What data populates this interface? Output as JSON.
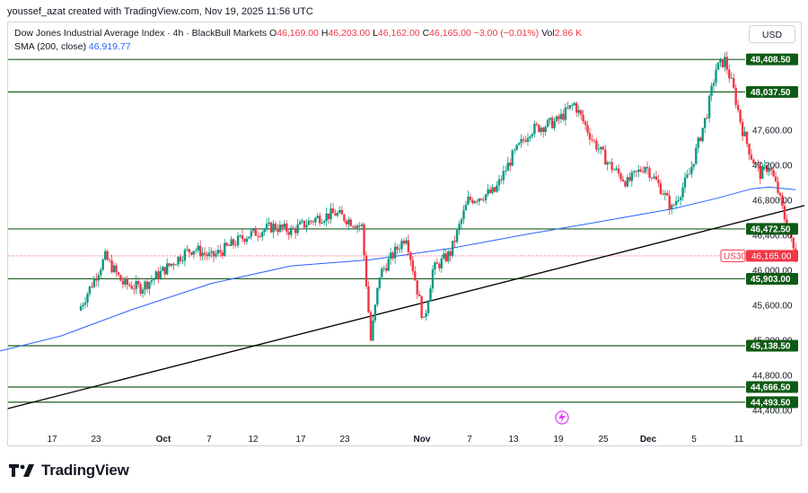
{
  "header": {
    "attribution": "youssef_azat created with TradingView.com, Nov 19, 2025 11:56 UTC"
  },
  "legend": {
    "symbol": "Dow Jones Industrial Average Index · 4h · BlackBull Markets",
    "open_label": "O",
    "open": "46,169.00",
    "high_label": "H",
    "high": "46,203.00",
    "low_label": "L",
    "low": "46,162.00",
    "close_label": "C",
    "close": "46,165.00",
    "change": "−3.00 (−0.01%)",
    "vol_label": "Vol",
    "vol": "2.86 K",
    "sma_label": "SMA (200, close)",
    "sma_value": "46,919.77"
  },
  "currency_button": "USD",
  "brand": "TradingView",
  "colors": {
    "up": "#089981",
    "down": "#f23645",
    "sma": "#2962ff",
    "level_line": "#1e5c1e",
    "level_label_bg": "#0f5a14",
    "trendline": "#000000"
  },
  "chart_data": {
    "type": "candlestick",
    "symbol_tag": "US30",
    "last_price": "46,165.00",
    "y_range": [
      44200,
      48700
    ],
    "y_ticks": [
      "44,400.00",
      "44,800.00",
      "45,200.00",
      "45,600.00",
      "46,000.00",
      "46,400.00",
      "46,800.00",
      "47,200.00",
      "47,600.00"
    ],
    "x_ticks": [
      "17",
      "23",
      "Oct",
      "7",
      "12",
      "17",
      "23",
      "Nov",
      "7",
      "13",
      "19",
      "25",
      "Dec",
      "5",
      "11"
    ],
    "horizontal_levels": [
      {
        "value": 48408.5,
        "label": "48,408.50"
      },
      {
        "value": 48037.5,
        "label": "48,037.50"
      },
      {
        "value": 46472.5,
        "label": "46,472.50"
      },
      {
        "value": 45903.0,
        "label": "45,903.00"
      },
      {
        "value": 45138.5,
        "label": "45,138.50"
      },
      {
        "value": 44666.5,
        "label": "44,666.50"
      },
      {
        "value": 44493.5,
        "label": "44,493.50"
      }
    ],
    "trendline": {
      "from": [
        "Sep 12",
        44420
      ],
      "to": [
        "Dec 11",
        46740
      ]
    },
    "price_path_daily": [
      {
        "x": 10,
        "close": 45540
      },
      {
        "x": 13,
        "close": 46150
      },
      {
        "x": 15,
        "close": 45850
      },
      {
        "x": 17,
        "close": 45800
      },
      {
        "x": 19,
        "close": 45950
      },
      {
        "x": 22,
        "close": 46200
      },
      {
        "x": 23,
        "close": 46250
      },
      {
        "x": 25,
        "close": 46150
      },
      {
        "x": 29,
        "close": 46400
      },
      {
        "x": 32,
        "close": 46500
      },
      {
        "x": 34,
        "close": 46450
      },
      {
        "x": 37,
        "close": 46600
      },
      {
        "x": 39,
        "close": 46650
      },
      {
        "x": 42,
        "close": 46500
      },
      {
        "x": 43,
        "close": 45200
      },
      {
        "x": 44,
        "close": 45950
      },
      {
        "x": 47,
        "close": 46400
      },
      {
        "x": 49,
        "close": 45400
      },
      {
        "x": 50,
        "close": 46000
      },
      {
        "x": 52,
        "close": 46200
      },
      {
        "x": 54,
        "close": 46800
      },
      {
        "x": 57,
        "close": 46900
      },
      {
        "x": 59,
        "close": 47300
      },
      {
        "x": 61,
        "close": 47600
      },
      {
        "x": 64,
        "close": 47700
      },
      {
        "x": 66,
        "close": 47900
      },
      {
        "x": 68,
        "close": 47500
      },
      {
        "x": 70,
        "close": 47200
      },
      {
        "x": 72,
        "close": 47000
      },
      {
        "x": 74,
        "close": 47200
      },
      {
        "x": 76,
        "close": 46900
      },
      {
        "x": 77,
        "close": 46700
      },
      {
        "x": 79,
        "close": 47100
      },
      {
        "x": 81,
        "close": 47800
      },
      {
        "x": 82,
        "close": 48300
      },
      {
        "x": 83,
        "close": 48400
      },
      {
        "x": 84,
        "close": 48050
      },
      {
        "x": 85,
        "close": 47600
      },
      {
        "x": 86,
        "close": 47300
      },
      {
        "x": 87,
        "close": 47100
      },
      {
        "x": 88,
        "close": 47200
      },
      {
        "x": 89,
        "close": 46900
      },
      {
        "x": 90,
        "close": 46500
      },
      {
        "x": 91,
        "close": 46150
      }
    ],
    "sma_path": [
      {
        "x": 0,
        "v": 45050
      },
      {
        "x": 8,
        "v": 45250
      },
      {
        "x": 16,
        "v": 45550
      },
      {
        "x": 25,
        "v": 45850
      },
      {
        "x": 34,
        "v": 46050
      },
      {
        "x": 43,
        "v": 46120
      },
      {
        "x": 52,
        "v": 46250
      },
      {
        "x": 60,
        "v": 46400
      },
      {
        "x": 68,
        "v": 46540
      },
      {
        "x": 77,
        "v": 46700
      },
      {
        "x": 82,
        "v": 46820
      },
      {
        "x": 86,
        "v": 46930
      },
      {
        "x": 88,
        "v": 46950
      },
      {
        "x": 91,
        "v": 46920
      }
    ],
    "current_price_line": 46165
  }
}
